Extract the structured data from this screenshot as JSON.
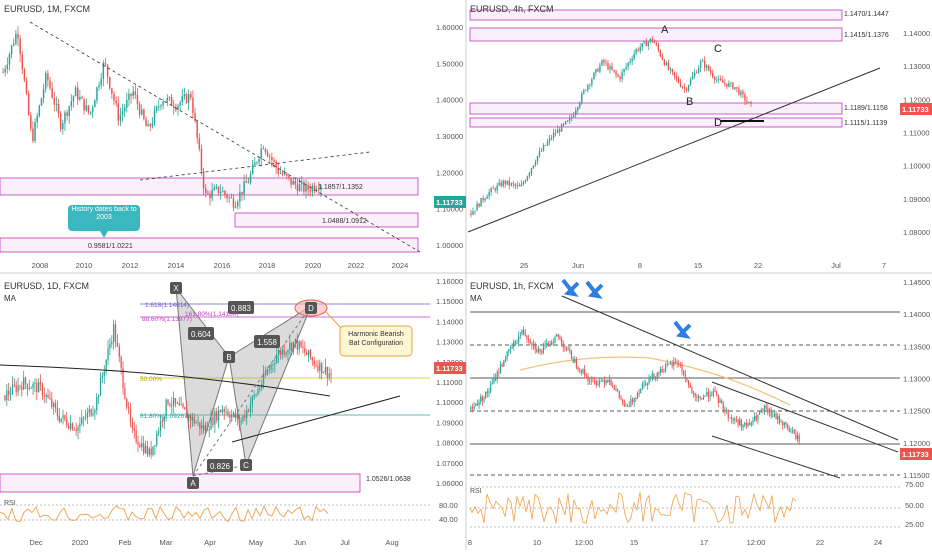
{
  "colors": {
    "bull": "#26a69a",
    "bear": "#ef5350",
    "zone_border": "#c039c0",
    "zone_fill": "#f6e3f6",
    "price_tag": "#ef5350",
    "price_tag_teal": "#26a69a",
    "axis_text": "#555555",
    "orange": "#f0a04b",
    "arrow_blue": "#2f7fe0",
    "callout_teal": "#3ab7bf",
    "callout_yellow_bg": "#fff6d6",
    "callout_yellow_border": "#e6a73a",
    "gray_box": "#555555"
  },
  "panels": {
    "monthly": {
      "title": "EURUSD, 1M, FXCM",
      "x_labels": [
        "2008",
        "2010",
        "2012",
        "2014",
        "2016",
        "2018",
        "2020",
        "2022",
        "2024"
      ],
      "price_axis": {
        "labels": [
          "1.60000",
          "1.50000",
          "1.40000",
          "1.30000",
          "1.20000",
          "1.10000",
          "1.00000"
        ],
        "current": "1.11733"
      },
      "zones": [
        {
          "label": "1.1857/1.1352"
        },
        {
          "label": "1.0488/1.0912"
        },
        {
          "label": "0.9581/1.0221"
        }
      ],
      "callout": "History dates back to 2003"
    },
    "h4": {
      "title": "EURUSD, 4h, FXCM",
      "x_labels": [
        "25",
        "Jun",
        "8",
        "15",
        "22",
        "Jul",
        "7"
      ],
      "price_axis": {
        "labels": [
          "1.14000",
          "1.13000",
          "1.12000",
          "1.11000",
          "1.10000",
          "1.09000",
          "1.08000"
        ],
        "current": "1.11733"
      },
      "zones": [
        {
          "label": "1.1470/1.1447"
        },
        {
          "label": "1.1415/1.1376"
        },
        {
          "label": "1.1189/1.1158"
        },
        {
          "label": "1.1115/1.1139"
        }
      ],
      "points": [
        "A",
        "B",
        "C",
        "D"
      ]
    },
    "daily": {
      "title": "EURUSD, 1D, FXCM",
      "indicator": "MA",
      "x_labels": [
        "Dec",
        "2020",
        "Feb",
        "Mar",
        "Apr",
        "May",
        "Jun",
        "Jul",
        "Aug"
      ],
      "price_axis": {
        "labels": [
          "1.16000",
          "1.15000",
          "1.14000",
          "1.13000",
          "1.12000",
          "1.11000",
          "1.10000",
          "1.09000",
          "1.08000",
          "1.07000",
          "1.06000"
        ],
        "current": "1.11733"
      },
      "rsi": {
        "label": "RSI",
        "levels": [
          "80.00",
          "40.00"
        ]
      },
      "points": [
        "X",
        "A",
        "B",
        "C",
        "D"
      ],
      "ratios": [
        "0.883",
        "0.604",
        "1.558",
        "0.826"
      ],
      "fib_labels": [
        "1.618(1.14614)",
        "88.60%(1.13977)",
        "161.80%(1.14100)",
        "61.80%(1.09267)",
        "50.00%"
      ],
      "zone_label": "1.0526/1.0638",
      "callout": "Harmonic Bearish Bat Configuration"
    },
    "hourly": {
      "title": "EURUSD, 1h, FXCM",
      "indicator": "MA",
      "x_labels": [
        "8",
        "10",
        "12:00",
        "15",
        "17",
        "12:00",
        "22",
        "24"
      ],
      "price_axis": {
        "labels": [
          "1.14500",
          "1.14000",
          "1.13500",
          "1.13000",
          "1.12500",
          "1.12000",
          "1.11500"
        ],
        "current": "1.11733"
      },
      "rsi": {
        "label": "RSI",
        "levels": [
          "75.00",
          "50.00",
          "25.00"
        ]
      }
    }
  },
  "chart_data": [
    {
      "type": "candlestick",
      "title": "EURUSD, 1M, FXCM",
      "ylim": [
        0.97,
        1.62
      ],
      "x": [
        "2008",
        "2010",
        "2012",
        "2014",
        "2016",
        "2018",
        "2020",
        "2022",
        "2024"
      ],
      "close_path": [
        1.46,
        1.59,
        1.25,
        1.45,
        1.3,
        1.4,
        1.33,
        1.49,
        1.32,
        1.4,
        1.28,
        1.38,
        1.36,
        1.39,
        1.08,
        1.1,
        1.06,
        1.13,
        1.24,
        1.16,
        1.12,
        1.1,
        1.12
      ],
      "zones": [
        [
          1.1352,
          1.1857
        ],
        [
          1.0488,
          1.0912
        ],
        [
          0.9581,
          1.0221
        ]
      ]
    },
    {
      "type": "candlestick",
      "title": "EURUSD, 4h, FXCM",
      "ylim": [
        1.074,
        1.147
      ],
      "x": [
        "25",
        "Jun",
        "8",
        "15",
        "22",
        "Jul",
        "7"
      ],
      "close_path": [
        1.08,
        1.087,
        1.091,
        1.089,
        1.1,
        1.108,
        1.113,
        1.125,
        1.134,
        1.128,
        1.138,
        1.142,
        1.131,
        1.124,
        1.134,
        1.127,
        1.125,
        1.118
      ],
      "zones": [
        [
          1.1447,
          1.147
        ],
        [
          1.1376,
          1.1415
        ],
        [
          1.1158,
          1.1189
        ],
        [
          1.1115,
          1.1139
        ]
      ]
    },
    {
      "type": "candlestick",
      "title": "EURUSD, 1D, FXCM",
      "ylim": [
        1.056,
        1.165
      ],
      "x": [
        "Dec",
        "2020",
        "Feb",
        "Mar",
        "Apr",
        "May",
        "Jun",
        "Jul",
        "Aug"
      ],
      "close_path": [
        1.104,
        1.112,
        1.108,
        1.09,
        1.083,
        1.098,
        1.147,
        1.08,
        1.066,
        1.101,
        1.092,
        1.082,
        1.096,
        1.087,
        1.108,
        1.13,
        1.138,
        1.126,
        1.117
      ],
      "pattern": {
        "X": 1.147,
        "A": 1.066,
        "B": 1.109,
        "C": 1.08,
        "D": 1.14
      }
    },
    {
      "type": "candlestick",
      "title": "EURUSD, 1h, FXCM",
      "ylim": [
        1.11,
        1.148
      ],
      "x": [
        "8",
        "10",
        "12:00",
        "15",
        "17",
        "12:00",
        "22",
        "24"
      ],
      "close_path": [
        1.124,
        1.128,
        1.136,
        1.142,
        1.137,
        1.141,
        1.135,
        1.13,
        1.131,
        1.124,
        1.13,
        1.133,
        1.135,
        1.126,
        1.128,
        1.122,
        1.12,
        1.124,
        1.121,
        1.117
      ],
      "levels": [
        1.14,
        1.135,
        1.13,
        1.125,
        1.12,
        1.115
      ]
    }
  ]
}
